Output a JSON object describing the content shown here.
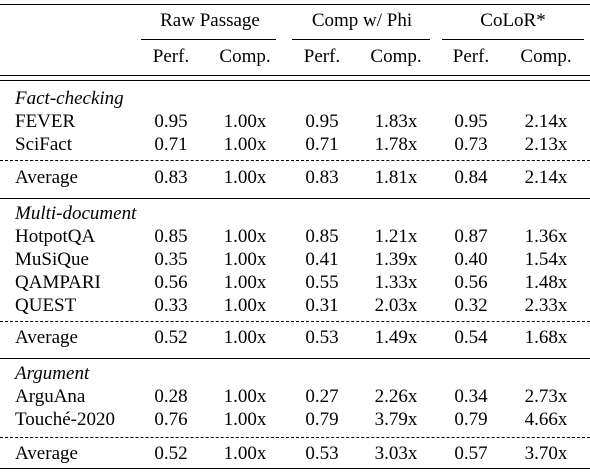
{
  "table": {
    "groups": [
      "Raw Passage",
      "Comp w/ Phi",
      "CoLoR*"
    ],
    "sub_headers": [
      "Perf.",
      "Comp."
    ],
    "sections": [
      {
        "name": "Fact-checking",
        "rows": [
          {
            "name": "FEVER",
            "values": [
              "0.95",
              "1.00x",
              "0.95",
              "1.83x",
              "0.95",
              "2.14x"
            ]
          },
          {
            "name": "SciFact",
            "values": [
              "0.71",
              "1.00x",
              "0.71",
              "1.78x",
              "0.73",
              "2.13x"
            ]
          }
        ],
        "average": {
          "name": "Average",
          "values": [
            "0.83",
            "1.00x",
            "0.83",
            "1.81x",
            "0.84",
            "2.14x"
          ]
        }
      },
      {
        "name": "Multi-document",
        "rows": [
          {
            "name": "HotpotQA",
            "values": [
              "0.85",
              "1.00x",
              "0.85",
              "1.21x",
              "0.87",
              "1.36x"
            ]
          },
          {
            "name": "MuSiQue",
            "values": [
              "0.35",
              "1.00x",
              "0.41",
              "1.39x",
              "0.40",
              "1.54x"
            ]
          },
          {
            "name": "QAMPARI",
            "values": [
              "0.56",
              "1.00x",
              "0.55",
              "1.33x",
              "0.56",
              "1.48x"
            ]
          },
          {
            "name": "QUEST",
            "values": [
              "0.33",
              "1.00x",
              "0.31",
              "2.03x",
              "0.32",
              "2.33x"
            ]
          }
        ],
        "average": {
          "name": "Average",
          "values": [
            "0.52",
            "1.00x",
            "0.53",
            "1.49x",
            "0.54",
            "1.68x"
          ]
        }
      },
      {
        "name": "Argument",
        "rows": [
          {
            "name": "ArguAna",
            "values": [
              "0.28",
              "1.00x",
              "0.27",
              "2.26x",
              "0.34",
              "2.73x"
            ]
          },
          {
            "name": "Touché-2020",
            "values": [
              "0.76",
              "1.00x",
              "0.79",
              "3.79x",
              "0.79",
              "4.66x"
            ]
          }
        ],
        "average": {
          "name": "Average",
          "values": [
            "0.52",
            "1.00x",
            "0.53",
            "3.03x",
            "0.57",
            "3.70x"
          ]
        }
      }
    ]
  }
}
